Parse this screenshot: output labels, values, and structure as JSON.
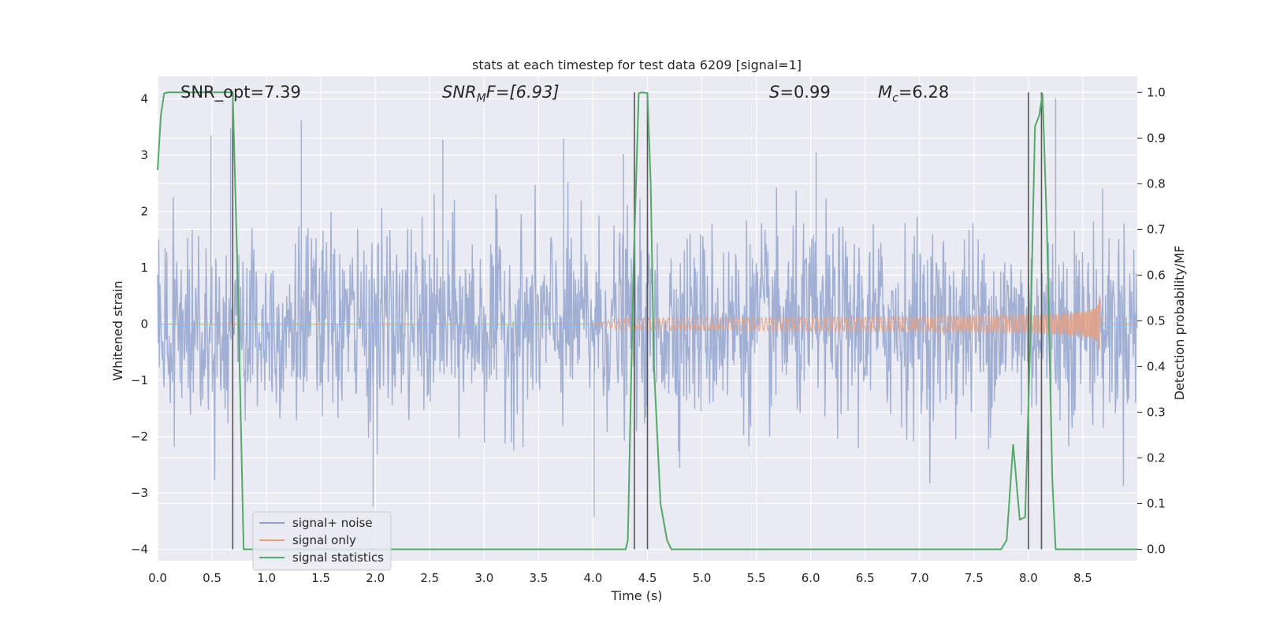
{
  "chart_data": {
    "type": "line",
    "title": "stats at each timestep for test data 6209 [signal=1]",
    "xlabel": "Time (s)",
    "ylabel": "Whitened strain",
    "ylabel_right": "Detection probability/MF",
    "xlim": [
      0,
      9
    ],
    "ylim": [
      -4.2,
      4.4
    ],
    "ylim_right": [
      -0.025,
      1.035
    ],
    "x_ticks": [
      0.0,
      0.5,
      1.0,
      1.5,
      2.0,
      2.5,
      3.0,
      3.5,
      4.0,
      4.5,
      5.0,
      5.5,
      6.0,
      6.5,
      7.0,
      7.5,
      8.0,
      8.5
    ],
    "x_tick_labels": [
      "0.0",
      "0.5",
      "1.0",
      "1.5",
      "2.0",
      "2.5",
      "3.0",
      "3.5",
      "4.0",
      "4.5",
      "5.0",
      "5.5",
      "6.0",
      "6.5",
      "7.0",
      "7.5",
      "8.0",
      "8.5"
    ],
    "y_ticks": [
      4,
      3,
      2,
      1,
      0,
      -1,
      -2,
      -3,
      -4
    ],
    "y_tick_labels": [
      "4",
      "3",
      "2",
      "1",
      "0",
      "−1",
      "−2",
      "−3",
      "−4"
    ],
    "y_right_ticks": [
      1.0,
      0.9,
      0.8,
      0.7,
      0.6,
      0.5,
      0.4,
      0.3,
      0.2,
      0.1,
      0.0
    ],
    "y_right_tick_labels": [
      "1.0",
      "0.9",
      "0.8",
      "0.7",
      "0.6",
      "0.5",
      "0.4",
      "0.3",
      "0.2",
      "0.1",
      "0.0"
    ],
    "grid": true,
    "legend_position": "lower-left",
    "annotations": {
      "snr_opt": "SNR_opt=7.39",
      "snr_mf_main": "SNR",
      "snr_mf_sub": "M",
      "snr_mf_rest": "F=[6.93]",
      "s_main": "S",
      "s_rest": "=0.99",
      "mc_main": "M",
      "mc_sub": "c",
      "mc_rest": "=6.28"
    },
    "series": [
      {
        "name": "signal+ noise",
        "color": "#8da0cb",
        "axis": "left",
        "duration": 9.0,
        "noise_std": 0.85,
        "peak_extremes": [
          [
            0.49,
            3.35
          ],
          [
            0.67,
            3.48
          ],
          [
            1.32,
            3.62
          ],
          [
            1.98,
            -3.25
          ],
          [
            2.62,
            3.27
          ],
          [
            3.73,
            3.3
          ],
          [
            4.01,
            -3.42
          ],
          [
            4.28,
            3.02
          ],
          [
            6.05,
            3.05
          ],
          [
            8.25,
            4.01
          ]
        ]
      },
      {
        "name": "signal only",
        "color": "#e5a082",
        "axis": "left",
        "chirp_start": 4.0,
        "chirp_end": 8.66,
        "peak_amplitude": 0.85
      },
      {
        "name": "signal statistics",
        "color": "#55a868",
        "axis": "right",
        "x": [
          0.0,
          0.03,
          0.06,
          0.1,
          0.15,
          0.3,
          0.5,
          0.65,
          0.69,
          0.74,
          0.79,
          0.82,
          0.9,
          1.5,
          3.0,
          4.0,
          4.3,
          4.32,
          4.37,
          4.42,
          4.45,
          4.5,
          4.53,
          4.56,
          4.62,
          4.68,
          4.72,
          5.0,
          6.0,
          7.0,
          7.75,
          7.8,
          7.86,
          7.92,
          7.97,
          8.02,
          8.06,
          8.1,
          8.13,
          8.17,
          8.22,
          8.25,
          8.5,
          9.0
        ],
        "y": [
          0.83,
          0.95,
          0.998,
          1.0,
          1.0,
          1.0,
          1.0,
          1.0,
          1.0,
          0.55,
          0.0,
          0.0,
          0.0,
          0.0,
          0.0,
          0.0,
          0.0,
          0.02,
          0.6,
          0.998,
          1.0,
          0.998,
          0.8,
          0.4,
          0.1,
          0.02,
          0.0,
          0.0,
          0.0,
          0.0,
          0.0,
          0.02,
          0.23,
          0.065,
          0.07,
          0.48,
          0.925,
          0.95,
          0.998,
          0.7,
          0.15,
          0.0,
          0.0,
          0.0
        ]
      }
    ],
    "vertical_lines": [
      0.69,
      4.38,
      4.5,
      8.0,
      8.12
    ],
    "vertical_line_color": "#555555"
  }
}
